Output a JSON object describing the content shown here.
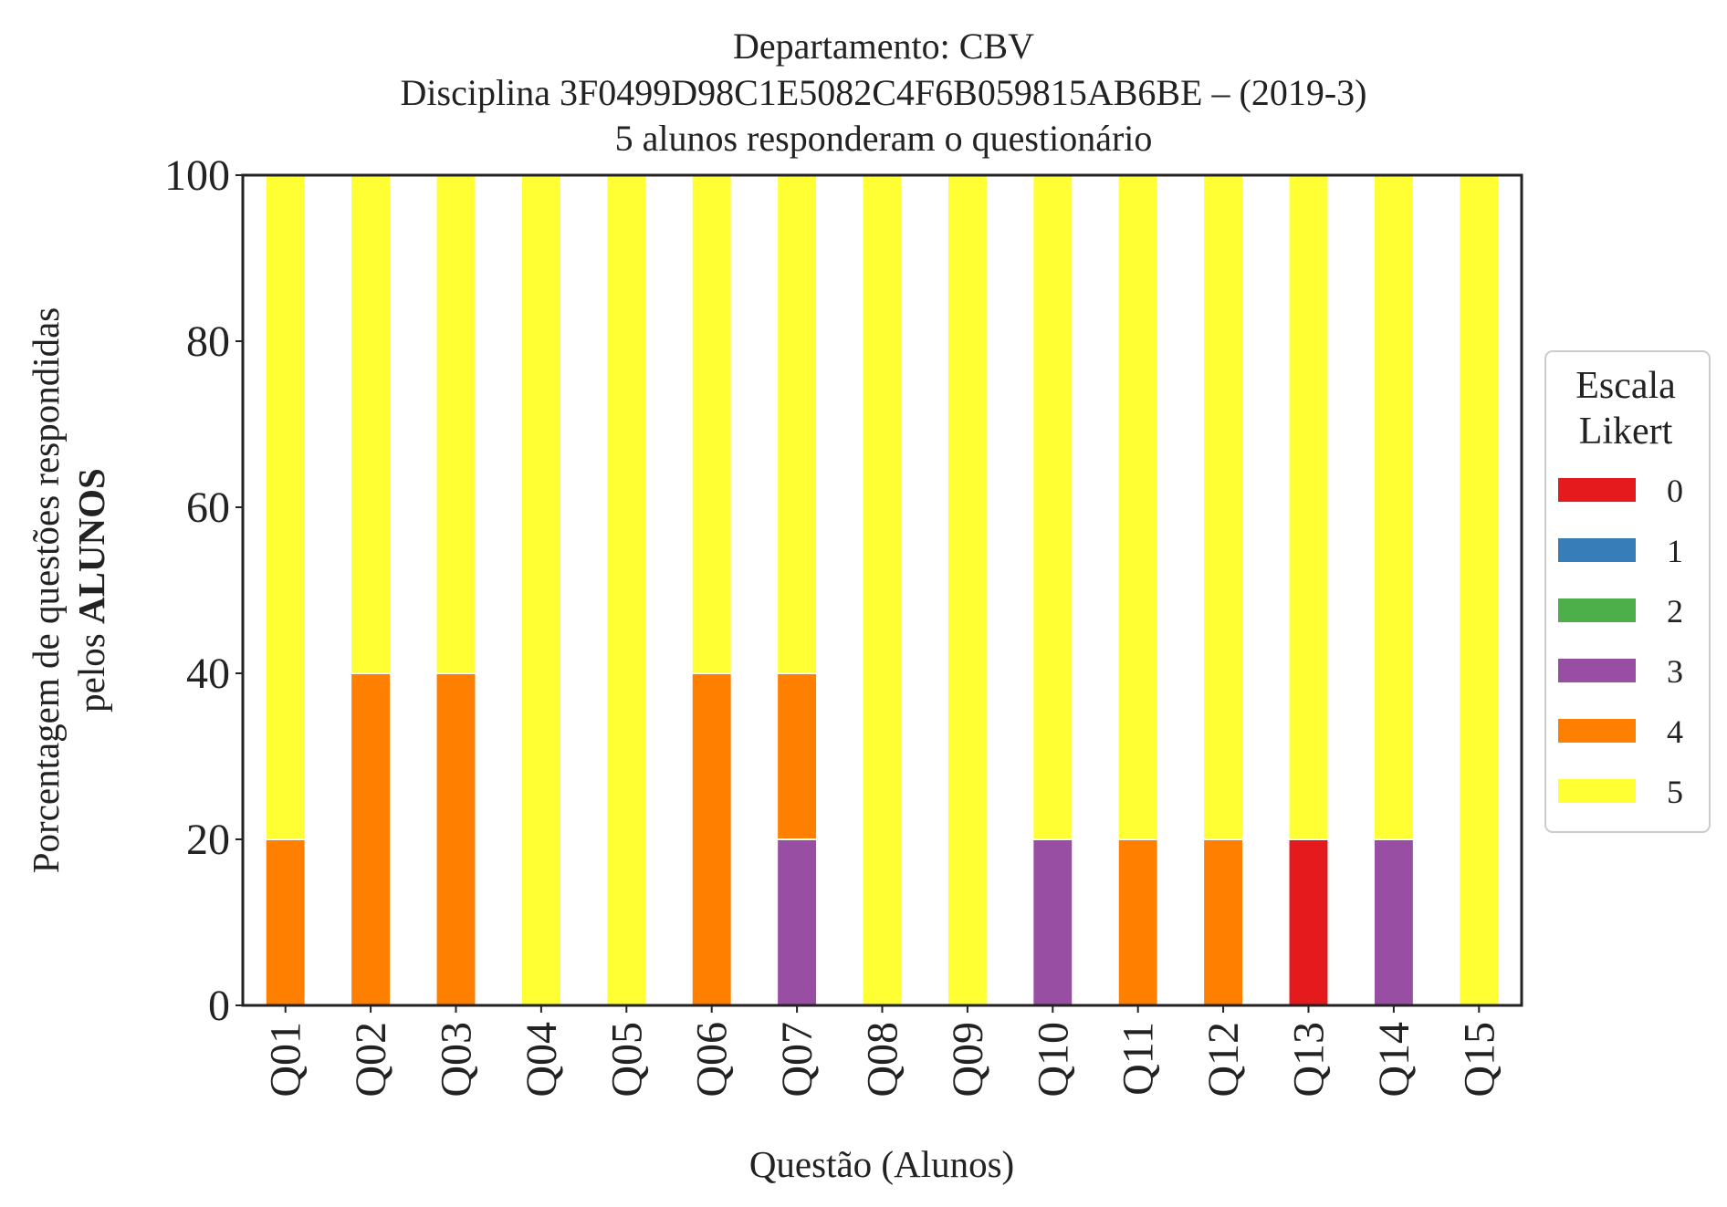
{
  "chart_data": {
    "type": "bar",
    "stacked": true,
    "title_lines": [
      "Departamento: CBV",
      "Disciplina 3F0499D98C1E5082C4F6B059815AB6BE – (2019-3)",
      "5 alunos responderam o questionário"
    ],
    "xlabel": "Questão (Alunos)",
    "ylabel_line1": "Porcentagem de questões respondidas",
    "ylabel_line2_prefix": "pelos ",
    "ylabel_line2_bold": "ALUNOS",
    "ylim": [
      0,
      100
    ],
    "yticks": [
      "0",
      "20",
      "40",
      "60",
      "80",
      "100"
    ],
    "grid": false,
    "legend": {
      "title_lines": [
        "Escala",
        "Likert"
      ],
      "placement": "right"
    },
    "categories": [
      "Q01",
      "Q02",
      "Q03",
      "Q04",
      "Q05",
      "Q06",
      "Q07",
      "Q08",
      "Q09",
      "Q10",
      "Q11",
      "Q12",
      "Q13",
      "Q14",
      "Q15"
    ],
    "series": [
      {
        "name": "0",
        "color": "#e41a1c",
        "values": [
          0,
          0,
          0,
          0,
          0,
          0,
          0,
          0,
          0,
          0,
          0,
          0,
          20,
          0,
          0
        ]
      },
      {
        "name": "1",
        "color": "#377eb8",
        "values": [
          0,
          0,
          0,
          0,
          0,
          0,
          0,
          0,
          0,
          0,
          0,
          0,
          0,
          0,
          0
        ]
      },
      {
        "name": "2",
        "color": "#4daf4a",
        "values": [
          0,
          0,
          0,
          0,
          0,
          0,
          0,
          0,
          0,
          0,
          0,
          0,
          0,
          0,
          0
        ]
      },
      {
        "name": "3",
        "color": "#984ea3",
        "values": [
          0,
          0,
          0,
          0,
          0,
          0,
          20,
          0,
          0,
          20,
          0,
          0,
          0,
          20,
          0
        ]
      },
      {
        "name": "4",
        "color": "#ff7f00",
        "values": [
          20,
          40,
          40,
          0,
          0,
          40,
          20,
          0,
          0,
          0,
          20,
          20,
          0,
          0,
          0
        ]
      },
      {
        "name": "5",
        "color": "#ffff33",
        "values": [
          80,
          60,
          60,
          100,
          100,
          60,
          60,
          100,
          100,
          80,
          80,
          80,
          80,
          80,
          100
        ]
      }
    ]
  }
}
